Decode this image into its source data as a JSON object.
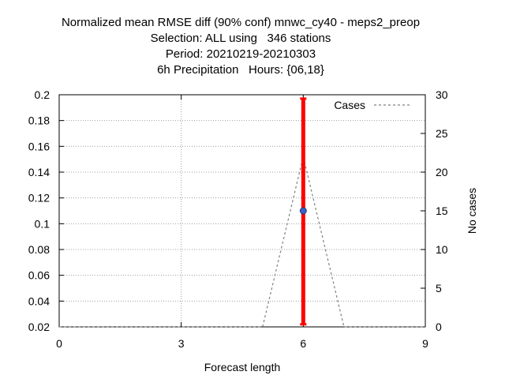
{
  "title_lines": [
    "Normalized mean RMSE diff (90% conf) mnwc_cy40 - meps2_preop",
    "Selection: ALL using   346 stations",
    "Period: 20210219-20210303",
    "6h Precipitation   Hours: {06,18}"
  ],
  "chart_data": {
    "type": "line",
    "xlabel": "Forecast length",
    "ylabel": "",
    "y2label": "No cases",
    "xlim": [
      0,
      9
    ],
    "ylim": [
      0.02,
      0.2
    ],
    "y2lim": [
      0,
      30
    ],
    "x_ticks": [
      0,
      3,
      6,
      9
    ],
    "y_ticks": [
      "0.02",
      "0.04",
      "0.06",
      "0.08",
      "0.1",
      "0.12",
      "0.14",
      "0.16",
      "0.18",
      "0.2"
    ],
    "y2_ticks": [
      "0",
      "5",
      "10",
      "15",
      "20",
      "25",
      "30"
    ],
    "grid": true,
    "legend_position": "top-right",
    "legend": [
      "Cases"
    ],
    "series": [
      {
        "name": "Cases",
        "axis": "right",
        "style": "dashed",
        "color": "#808080",
        "x": [
          0,
          1,
          2,
          3,
          4,
          5,
          6,
          7,
          8,
          9
        ],
        "y": [
          0,
          0,
          0,
          0,
          0,
          0,
          22,
          0,
          0,
          0
        ]
      },
      {
        "axis": "left",
        "style": "errorbar",
        "color": "#ff0000",
        "marker_color": "#4060c0",
        "x": [
          6
        ],
        "y": [
          0.11
        ],
        "y_low": [
          0.022
        ],
        "y_high": [
          0.197
        ]
      }
    ]
  }
}
